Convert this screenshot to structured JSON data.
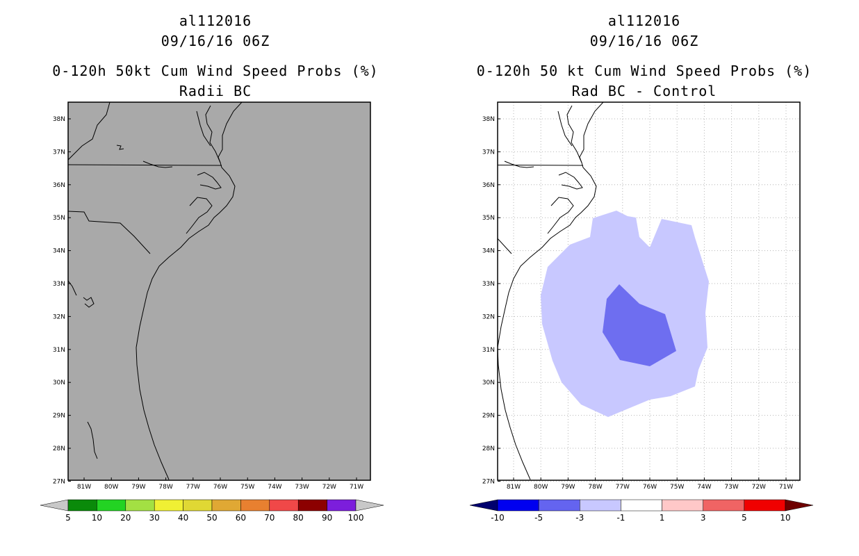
{
  "left_panel": {
    "title_lines": [
      "al112016",
      "09/16/16 06Z",
      "0-120h 50kt Cum Wind Speed Probs (%)",
      "Radii BC"
    ],
    "lat_labels": [
      "38N",
      "37N",
      "36N",
      "35N",
      "34N",
      "33N",
      "32N",
      "31N",
      "30N",
      "29N",
      "28N",
      "27N"
    ],
    "lon_labels": [
      "81W",
      "80W",
      "79W",
      "78W",
      "77W",
      "76W",
      "75W",
      "74W",
      "73W",
      "72W",
      "71W"
    ],
    "colorbar": {
      "labels": [
        "5",
        "10",
        "20",
        "30",
        "40",
        "50",
        "60",
        "70",
        "80",
        "90",
        "100"
      ],
      "colors": [
        "#c8c8c8",
        "#0a8a0a",
        "#23d323",
        "#a3e043",
        "#f0f034",
        "#e0d834",
        "#e0a834",
        "#e88030",
        "#f04848",
        "#8c0000",
        "#7c1edc",
        "#c8c8c8"
      ],
      "values": [
        5,
        10,
        20,
        30,
        40,
        50,
        60,
        70,
        80,
        90,
        100
      ]
    },
    "map_fill_color": "#a9a9a9"
  },
  "right_panel": {
    "title_lines": [
      "al112016",
      "09/16/16 06Z",
      "0-120h 50 kt Cum Wind Speed Probs (%)",
      "Rad BC - Control"
    ],
    "lat_labels": [
      "38N",
      "37N",
      "36N",
      "35N",
      "34N",
      "33N",
      "32N",
      "31N",
      "30N",
      "29N",
      "28N",
      "27N"
    ],
    "lon_labels": [
      "81W",
      "80W",
      "79W",
      "78W",
      "77W",
      "76W",
      "75W",
      "74W",
      "73W",
      "72W",
      "71W"
    ],
    "colorbar": {
      "labels": [
        "-10",
        "-5",
        "-3",
        "-1",
        "1",
        "3",
        "5",
        "10"
      ],
      "colors": [
        "#00006e",
        "#0000f0",
        "#6464f0",
        "#c8c8ff",
        "#ffffff",
        "#ffc8c8",
        "#f06464",
        "#f00000",
        "#6e0000"
      ],
      "values": [
        -10,
        -5,
        -3,
        -1,
        1,
        3,
        5,
        10
      ]
    },
    "light_fill_color": "#c8c8ff",
    "dark_fill_color": "#6e6ef0"
  }
}
